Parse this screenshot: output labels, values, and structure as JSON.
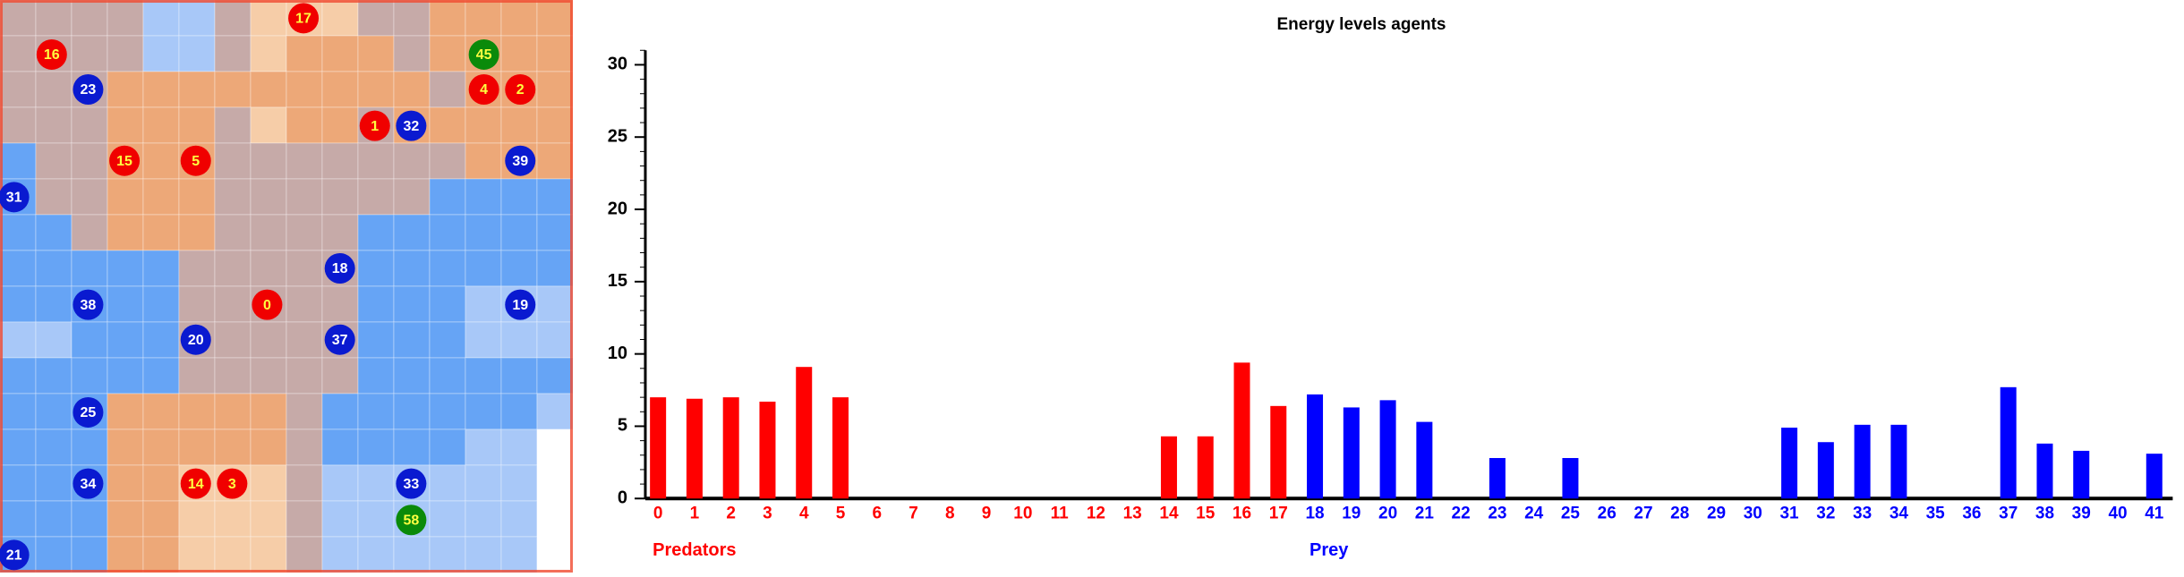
{
  "grid": {
    "palette": {
      "o": "#eda878",
      "g": "#c6aaa8",
      "b": "#66a4f5",
      "l": "#a8c8f8",
      "p": "#f6cda8",
      "w": "#ffffff"
    },
    "rows": [
      "gggglldpppggoooo",
      "ggggllgpooogoooo",
      "gggooooooooogooo",
      "gggooogpoogooooo",
      "bggooogggggggooo",
      "bggoooggggggbbbb",
      "bbgoooggggbbbbbb",
      "bbbbbgggggbbbbbb",
      "bbbbbgggggbbblll",
      "llbbbgggggbbblll",
      "bbbbbgggggbbbbbb",
      "bbbooooogbbbbbbl",
      "bbbooooogbbbbllw",
      "bbboopppgllllllw",
      "bbboopppgllllllw",
      "bbboopppgllllllw"
    ],
    "agents": [
      {
        "label": "17",
        "color": "#f00000"
      },
      {
        "label": "16",
        "color": "#f00000"
      },
      {
        "label": "45",
        "color": "#0a8a0a"
      },
      {
        "label": "23",
        "color": "#0a1ad0"
      },
      {
        "label": "4",
        "color": "#f00000"
      },
      {
        "label": "2",
        "color": "#f00000"
      },
      {
        "label": "1",
        "color": "#f00000"
      },
      {
        "label": "32",
        "color": "#0a1ad0"
      },
      {
        "label": "15",
        "color": "#f00000"
      },
      {
        "label": "5",
        "color": "#f00000"
      },
      {
        "label": "39",
        "color": "#0a1ad0"
      },
      {
        "label": "31",
        "color": "#0a1ad0"
      },
      {
        "label": "18",
        "color": "#0a1ad0"
      },
      {
        "label": "38",
        "color": "#0a1ad0"
      },
      {
        "label": "0",
        "color": "#f00000"
      },
      {
        "label": "19",
        "color": "#0a1ad0"
      },
      {
        "label": "20",
        "color": "#0a1ad0"
      },
      {
        "label": "37",
        "color": "#0a1ad0"
      },
      {
        "label": "25",
        "color": "#0a1ad0"
      },
      {
        "label": "34",
        "color": "#0a1ad0"
      },
      {
        "label": "14",
        "color": "#f00000"
      },
      {
        "label": "3",
        "color": "#f00000"
      },
      {
        "label": "33",
        "color": "#0a1ad0"
      },
      {
        "label": "58",
        "color": "#0a8a0a"
      },
      {
        "label": "21",
        "color": "#0a1ad0"
      }
    ]
  },
  "chart_data": {
    "type": "bar",
    "title": "Energy levels agents",
    "categories": [
      "0",
      "1",
      "2",
      "3",
      "4",
      "5",
      "6",
      "7",
      "8",
      "9",
      "10",
      "11",
      "12",
      "13",
      "14",
      "15",
      "16",
      "17",
      "18",
      "19",
      "20",
      "21",
      "22",
      "23",
      "24",
      "25",
      "26",
      "27",
      "28",
      "29",
      "30",
      "31",
      "32",
      "33",
      "34",
      "35",
      "36",
      "37",
      "38",
      "39",
      "40",
      "41"
    ],
    "series": [
      {
        "name": "Predators",
        "color": "#ff0000",
        "values": [
          7.0,
          6.9,
          7.0,
          6.7,
          9.1,
          7.0,
          0,
          0,
          0,
          0,
          0,
          0,
          0,
          0,
          4.3,
          4.3,
          9.4,
          6.4,
          null,
          null,
          null,
          null,
          null,
          null,
          null,
          null,
          null,
          null,
          null,
          null,
          null,
          null,
          null,
          null,
          null,
          null,
          null,
          null,
          null,
          null,
          null,
          null
        ]
      },
      {
        "name": "Prey",
        "color": "#0000ff",
        "values": [
          null,
          null,
          null,
          null,
          null,
          null,
          null,
          null,
          null,
          null,
          null,
          null,
          null,
          null,
          null,
          null,
          null,
          null,
          7.2,
          6.3,
          6.8,
          5.3,
          0,
          2.8,
          0,
          2.8,
          0,
          0,
          0,
          0,
          0,
          4.9,
          3.9,
          5.1,
          5.1,
          0,
          0,
          7.7,
          3.8,
          3.3,
          0,
          3.1
        ]
      }
    ],
    "ylim": [
      0,
      31
    ],
    "yticks": [
      0,
      5,
      10,
      15,
      20,
      25,
      30
    ]
  }
}
